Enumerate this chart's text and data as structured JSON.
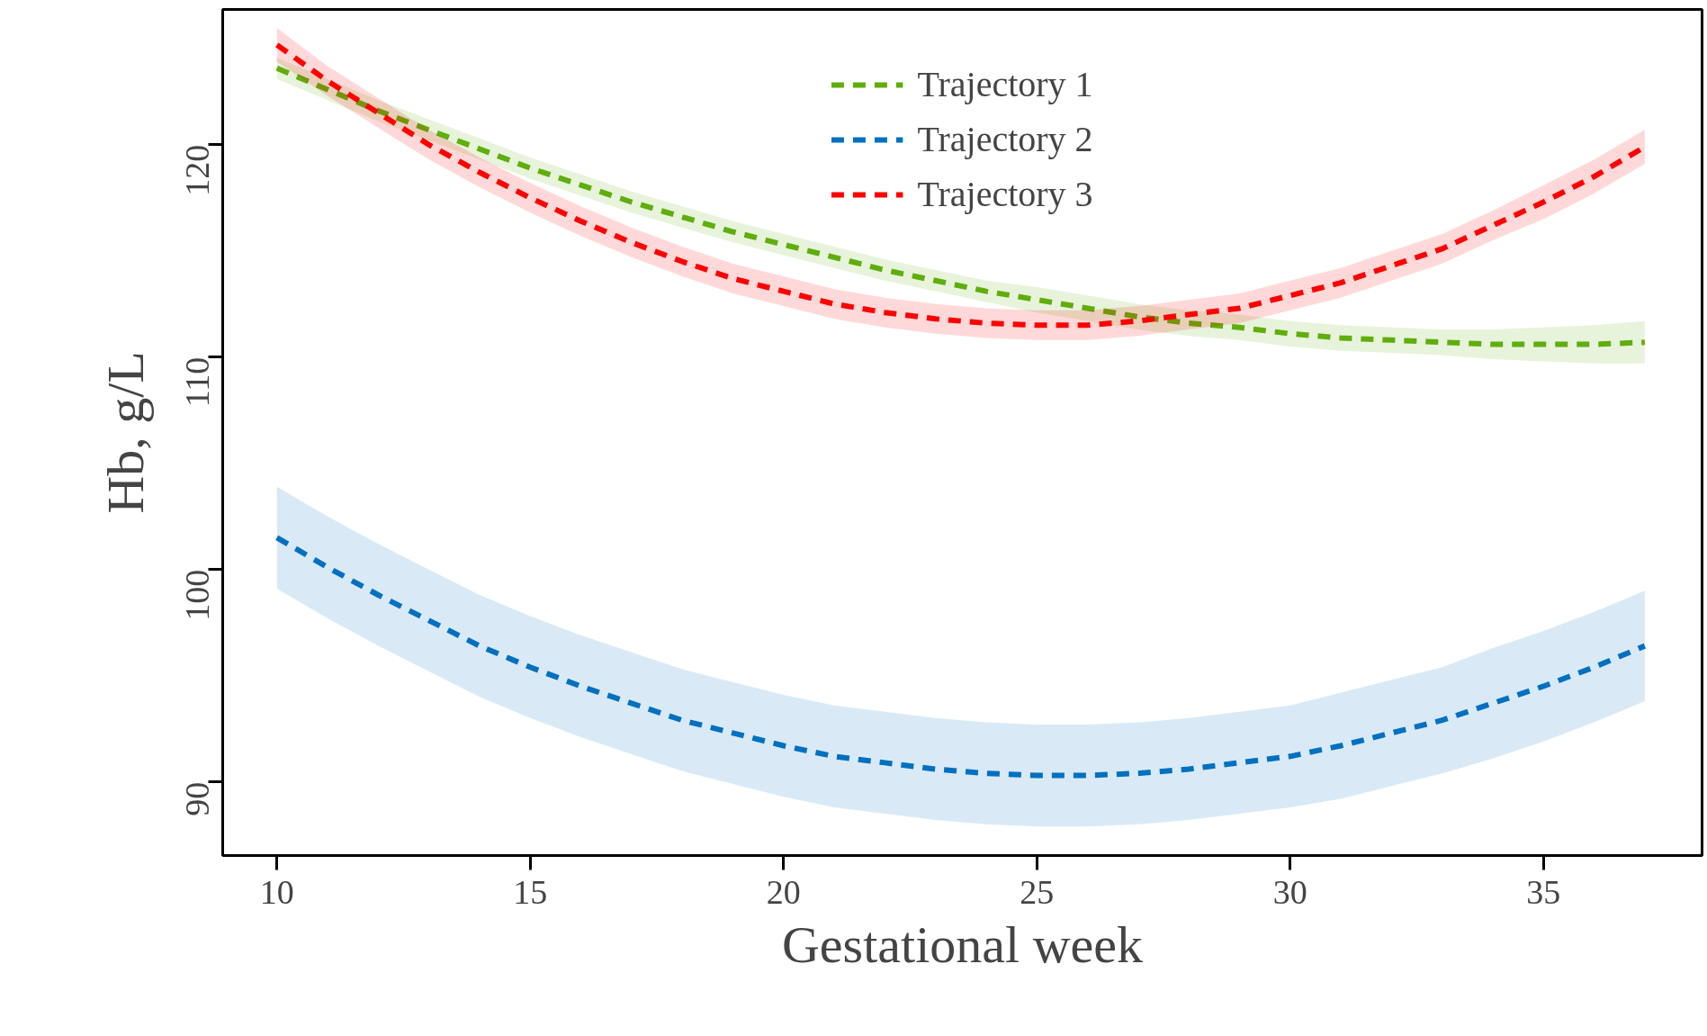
{
  "chart_data": {
    "type": "line",
    "xlabel": "Gestational week",
    "ylabel": "Hb, g/L",
    "x": [
      10,
      11,
      12,
      13,
      14,
      15,
      16,
      17,
      18,
      19,
      20,
      21,
      22,
      23,
      24,
      25,
      26,
      27,
      28,
      29,
      30,
      31,
      32,
      33,
      34,
      35,
      36,
      37
    ],
    "xlim": [
      8.93,
      38.13
    ],
    "ylim": [
      86.53,
      126.37
    ],
    "xticks": [
      10,
      15,
      20,
      25,
      30,
      35
    ],
    "yticks": [
      90,
      100,
      110,
      120
    ],
    "grid": false,
    "legend": "top",
    "line_style": "dashed",
    "marker": "none",
    "series": [
      {
        "name": "Trajectory 1",
        "color": "#5fae0c",
        "values": [
          123.6,
          122.6,
          121.6,
          120.7,
          119.8,
          118.9,
          118.1,
          117.3,
          116.6,
          115.9,
          115.3,
          114.7,
          114.1,
          113.6,
          113.1,
          112.7,
          112.3,
          111.9,
          111.6,
          111.4,
          111.1,
          110.9,
          110.8,
          110.7,
          110.6,
          110.6,
          110.6,
          110.7
        ],
        "lower": [
          123.1,
          122.1,
          121.1,
          120.2,
          119.3,
          118.4,
          117.6,
          116.8,
          116.1,
          115.4,
          114.8,
          114.2,
          113.6,
          113.1,
          112.6,
          112.1,
          111.7,
          111.3,
          111.0,
          110.8,
          110.5,
          110.3,
          110.2,
          110.1,
          109.9,
          109.8,
          109.7,
          109.7
        ],
        "upper": [
          124.1,
          123.1,
          122.1,
          121.2,
          120.3,
          119.4,
          118.6,
          117.8,
          117.1,
          116.4,
          115.8,
          115.2,
          114.6,
          114.1,
          113.6,
          113.3,
          112.9,
          112.5,
          112.2,
          112.0,
          111.7,
          111.5,
          111.4,
          111.3,
          111.3,
          111.4,
          111.5,
          111.7
        ]
      },
      {
        "name": "Trajectory 2",
        "color": "#0070c0",
        "values": [
          101.5,
          100.1,
          98.8,
          97.6,
          96.4,
          95.4,
          94.5,
          93.7,
          92.9,
          92.3,
          91.7,
          91.2,
          90.9,
          90.6,
          90.4,
          90.3,
          90.3,
          90.4,
          90.6,
          90.9,
          91.2,
          91.7,
          92.3,
          92.9,
          93.7,
          94.5,
          95.4,
          96.4
        ],
        "lower": [
          99.1,
          97.7,
          96.4,
          95.2,
          94.0,
          93.0,
          92.1,
          91.3,
          90.5,
          89.9,
          89.3,
          88.8,
          88.5,
          88.2,
          88.0,
          87.9,
          87.9,
          88.0,
          88.2,
          88.5,
          88.8,
          89.2,
          89.8,
          90.4,
          91.1,
          91.9,
          92.8,
          93.8
        ],
        "upper": [
          103.9,
          102.5,
          101.2,
          100.0,
          98.8,
          97.8,
          96.9,
          96.1,
          95.3,
          94.7,
          94.1,
          93.6,
          93.3,
          93.0,
          92.8,
          92.7,
          92.7,
          92.8,
          93.0,
          93.3,
          93.6,
          94.2,
          94.8,
          95.4,
          96.3,
          97.1,
          98.0,
          99.0
        ]
      },
      {
        "name": "Trajectory 3",
        "color": "#ff0000",
        "values": [
          124.7,
          123.0,
          121.5,
          120.0,
          118.7,
          117.5,
          116.4,
          115.4,
          114.5,
          113.7,
          113.1,
          112.5,
          112.1,
          111.8,
          111.6,
          111.5,
          111.5,
          111.7,
          112.0,
          112.3,
          112.9,
          113.5,
          114.3,
          115.1,
          116.2,
          117.3,
          118.5,
          119.9
        ],
        "lower": [
          123.9,
          122.3,
          120.8,
          119.3,
          118.0,
          116.8,
          115.7,
          114.7,
          113.8,
          113.0,
          112.4,
          111.8,
          111.4,
          111.1,
          110.9,
          110.8,
          110.8,
          111.0,
          111.3,
          111.6,
          112.2,
          112.8,
          113.6,
          114.4,
          115.5,
          116.5,
          117.7,
          119.1
        ],
        "upper": [
          125.5,
          123.7,
          122.2,
          120.7,
          119.4,
          118.2,
          117.1,
          116.1,
          115.2,
          114.4,
          113.8,
          113.2,
          112.8,
          112.5,
          112.3,
          112.2,
          112.2,
          112.4,
          112.7,
          113.0,
          113.6,
          114.2,
          115.0,
          115.8,
          116.9,
          118.1,
          119.3,
          120.7
        ]
      }
    ]
  }
}
